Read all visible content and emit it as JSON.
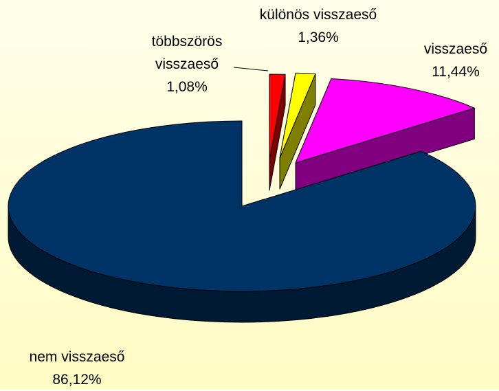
{
  "chart_data": {
    "type": "pie",
    "categories": [
      "többszörös visszaeső",
      "különös visszaeső",
      "visszaeső",
      "nem visszaeső"
    ],
    "values": [
      1.08,
      1.36,
      11.44,
      86.12
    ],
    "value_labels": [
      "1,08%",
      "1,36%",
      "11,44%",
      "86,12%"
    ],
    "colors": [
      "#ff0000",
      "#ffff00",
      "#ff00ff",
      "#003366"
    ],
    "side_colors": [
      "#800000",
      "#808000",
      "#800080",
      "#001a33"
    ]
  }
}
